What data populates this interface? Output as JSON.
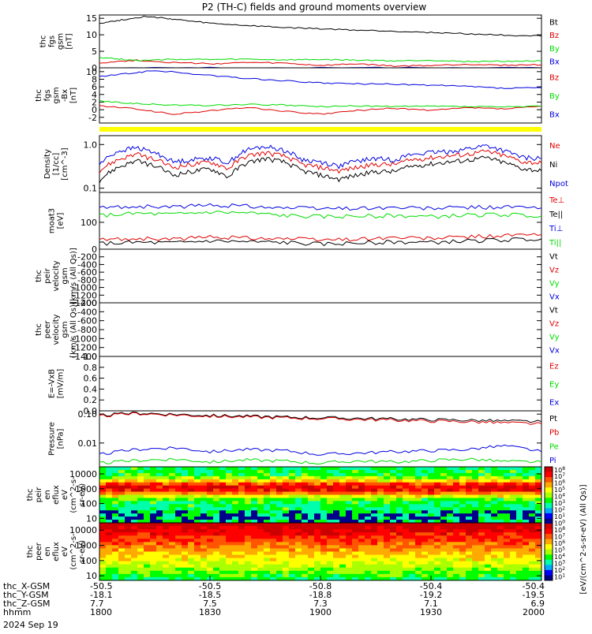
{
  "title": "P2 (TH-C) fields and ground moments overview",
  "date_label": "2024 Sep 19",
  "orbit_rows": [
    {
      "label": "thc_X-GSM",
      "values": [
        "-50.5",
        "-50.5",
        "-50.8",
        "-50.4",
        "-50.4"
      ]
    },
    {
      "label": "thc_Y-GSM",
      "values": [
        "-18.1",
        "-18.5",
        "-18.8",
        "-19.2",
        "-19.5"
      ]
    },
    {
      "label": "thc_Z-GSM",
      "values": [
        "7.7",
        "7.5",
        "7.3",
        "7.1",
        "6.9"
      ]
    },
    {
      "label": "hhmm",
      "values": [
        "1800",
        "1830",
        "1900",
        "1930",
        "2000"
      ]
    }
  ],
  "colors": {
    "black": "#000000",
    "red": "#e00000",
    "green": "#00dd00",
    "blue": "#0000e0",
    "yellow": "#ffff00"
  },
  "chart_data": [
    {
      "id": "fgs_gsm",
      "type": "line",
      "ylabel": [
        "thc",
        "fgs",
        "gsm",
        "[nT]"
      ],
      "ylim": [
        0,
        16
      ],
      "yticks": [
        0,
        5,
        10,
        15
      ],
      "series": [
        {
          "name": "Bt",
          "color": "black",
          "x": [
            1800,
            1806,
            1812,
            1818,
            1824,
            1830,
            1840,
            1850,
            1900,
            1910,
            1920,
            1930,
            1940,
            1950,
            2000
          ],
          "y": [
            13.5,
            14.5,
            15.5,
            15,
            14.2,
            13.5,
            12.8,
            12.2,
            11.8,
            11.4,
            11.1,
            10.7,
            10.3,
            9.9,
            9.6
          ]
        },
        {
          "name": "Bz",
          "color": "red",
          "x": [
            1800,
            1810,
            1820,
            1830,
            1840,
            1850,
            1900,
            1910,
            1920,
            1930,
            1940,
            1950,
            2000
          ],
          "y": [
            1.5,
            2.3,
            1.6,
            1.2,
            1.6,
            1.4,
            0.7,
            1.2,
            0.5,
            0.7,
            1.1,
            0.8,
            0.9
          ]
        },
        {
          "name": "By",
          "color": "green",
          "x": [
            1800,
            1806,
            1812,
            1820,
            1830,
            1840,
            1850,
            1900,
            1910,
            1920,
            1930,
            1940,
            1950,
            2000
          ],
          "y": [
            3.2,
            2.6,
            2.2,
            2.6,
            2.5,
            2.6,
            2.4,
            2.5,
            2.3,
            2.1,
            2.3,
            1.9,
            2.0,
            2.1
          ]
        },
        {
          "name": "Bx",
          "color": "blue",
          "x": [
            1800,
            1830,
            1900,
            1930,
            2000
          ],
          "y": [
            0,
            0,
            0,
            0,
            0
          ]
        }
      ]
    },
    {
      "id": "fgs_gsm_no_bx",
      "type": "line",
      "ylabel": [
        "thc",
        "fgs",
        "gsm",
        "-Bx",
        "[nT]"
      ],
      "ylim": [
        -3.5,
        11
      ],
      "yticks": [
        -2,
        0,
        2,
        4,
        6,
        8,
        10
      ],
      "series": [
        {
          "name": "Bz",
          "color": "red",
          "x": [
            1800,
            1810,
            1820,
            1830,
            1840,
            1850,
            1900,
            1910,
            1920,
            1930,
            1940,
            1950,
            2000
          ],
          "y": [
            1.0,
            0.2,
            -1.2,
            -0.3,
            0.6,
            -0.4,
            -1.2,
            -0.2,
            0.4,
            -0.2,
            0.5,
            0.2,
            0.9
          ]
        },
        {
          "name": "By",
          "color": "green",
          "x": [
            1800,
            1806,
            1812,
            1820,
            1830,
            1840,
            1850,
            1900,
            1910,
            1920,
            1930,
            1940,
            1950,
            2000
          ],
          "y": [
            2.3,
            1.8,
            1.5,
            1.2,
            1.1,
            1.4,
            1.2,
            0.8,
            1.0,
            0.8,
            0.9,
            0.8,
            0.7,
            0.9
          ]
        },
        {
          "name": "Bx",
          "color": "blue",
          "x": [
            1800,
            1808,
            1815,
            1830,
            1840,
            1850,
            1900,
            1910,
            1920,
            1930,
            1940,
            1950,
            2000
          ],
          "y": [
            8.7,
            9.5,
            10.3,
            9.0,
            8.2,
            7.6,
            7.0,
            6.8,
            6.7,
            6.4,
            6.1,
            5.6,
            5.8
          ]
        }
      ]
    },
    {
      "id": "density",
      "type": "line",
      "log": true,
      "ylabel": [
        "Density",
        "[1/cc]",
        "[cm^-3]"
      ],
      "ylim": [
        0.08,
        1.6
      ],
      "yticks": [
        0.1,
        1.0
      ],
      "yticklabels": [
        "0.1",
        "1.0"
      ],
      "series": [
        {
          "name": "Ne",
          "color": "red",
          "x": [
            1800,
            1805,
            1810,
            1815,
            1820,
            1825,
            1830,
            1835,
            1840,
            1845,
            1850,
            1855,
            1900,
            1905,
            1910,
            1915,
            1920,
            1925,
            1930,
            1935,
            1940,
            1945,
            1950,
            1955,
            2000
          ],
          "y": [
            0.25,
            0.45,
            0.6,
            0.45,
            0.3,
            0.35,
            0.4,
            0.28,
            0.55,
            0.65,
            0.55,
            0.35,
            0.3,
            0.25,
            0.3,
            0.35,
            0.35,
            0.45,
            0.5,
            0.55,
            0.6,
            0.7,
            0.55,
            0.4,
            0.38
          ]
        },
        {
          "name": "Ni",
          "color": "black",
          "x": [
            1800,
            1805,
            1810,
            1815,
            1820,
            1825,
            1830,
            1835,
            1840,
            1845,
            1850,
            1855,
            1900,
            1905,
            1910,
            1915,
            1920,
            1925,
            1930,
            1935,
            1940,
            1945,
            1950,
            1955,
            2000
          ],
          "y": [
            0.15,
            0.3,
            0.42,
            0.32,
            0.2,
            0.24,
            0.28,
            0.18,
            0.38,
            0.48,
            0.4,
            0.25,
            0.2,
            0.16,
            0.2,
            0.24,
            0.24,
            0.32,
            0.36,
            0.4,
            0.44,
            0.5,
            0.38,
            0.28,
            0.25
          ]
        },
        {
          "name": "Npot",
          "color": "blue",
          "x": [
            1800,
            1805,
            1810,
            1815,
            1820,
            1825,
            1830,
            1835,
            1840,
            1845,
            1850,
            1855,
            1900,
            1905,
            1910,
            1915,
            1920,
            1925,
            1930,
            1935,
            1940,
            1945,
            1950,
            1955,
            2000
          ],
          "y": [
            0.35,
            0.7,
            0.85,
            0.65,
            0.4,
            0.45,
            0.5,
            0.38,
            0.75,
            0.9,
            0.75,
            0.45,
            0.4,
            0.32,
            0.42,
            0.48,
            0.45,
            0.6,
            0.65,
            0.7,
            0.8,
            0.95,
            0.7,
            0.5,
            0.48
          ]
        }
      ]
    },
    {
      "id": "temperature",
      "type": "line",
      "log": true,
      "ylabel": [
        "moat3",
        "[eV]"
      ],
      "ylim": [
        20,
        600
      ],
      "yticks": [
        100
      ],
      "yticklabels": [
        "100"
      ],
      "series": [
        {
          "name": "Te⊥",
          "color": "red",
          "x": [
            1800,
            1810,
            1820,
            1830,
            1840,
            1850,
            1900,
            1910,
            1920,
            1930,
            1940,
            1950,
            2000
          ],
          "y": [
            35,
            38,
            36,
            42,
            40,
            38,
            35,
            37,
            40,
            38,
            42,
            45,
            48
          ]
        },
        {
          "name": "Te||",
          "color": "black",
          "x": [
            1800,
            1810,
            1820,
            1830,
            1840,
            1850,
            1900,
            1910,
            1920,
            1930,
            1940,
            1950,
            2000
          ],
          "y": [
            28,
            30,
            29,
            33,
            31,
            30,
            27,
            29,
            31,
            30,
            33,
            35,
            37
          ]
        },
        {
          "name": "Ti⊥",
          "color": "blue",
          "x": [
            1800,
            1810,
            1820,
            1830,
            1840,
            1850,
            1900,
            1910,
            1920,
            1930,
            1940,
            1950,
            2000
          ],
          "y": [
            240,
            260,
            250,
            280,
            270,
            240,
            230,
            235,
            240,
            230,
            245,
            250,
            235
          ]
        },
        {
          "name": "Ti||",
          "color": "green",
          "x": [
            1800,
            1810,
            1820,
            1830,
            1840,
            1850,
            1900,
            1910,
            1920,
            1930,
            1940,
            1950,
            2000
          ],
          "y": [
            150,
            170,
            160,
            185,
            175,
            150,
            140,
            145,
            150,
            140,
            155,
            160,
            145
          ]
        }
      ]
    },
    {
      "id": "peir_velocity",
      "type": "line",
      "ylabel": [
        "thc",
        "peir",
        "velocity",
        "gsm",
        "[km/s (All Qs)]"
      ],
      "ylim": [
        -1400,
        0
      ],
      "yticks": [
        0,
        -200,
        -400,
        -600,
        -800,
        -1000,
        -1200,
        -1400
      ],
      "series": [
        {
          "name": "Vt",
          "color": "black"
        },
        {
          "name": "Vz",
          "color": "red"
        },
        {
          "name": "Vy",
          "color": "green"
        },
        {
          "name": "Vx",
          "color": "blue"
        }
      ]
    },
    {
      "id": "peer_velocity",
      "type": "line",
      "ylabel": [
        "thc",
        "peer",
        "velocity",
        "gsm",
        "[km/s (All Qs)]"
      ],
      "ylim": [
        -1400,
        -200
      ],
      "yticks": [
        -200,
        -400,
        -600,
        -800,
        -1000,
        -1200,
        -1400
      ],
      "series": [
        {
          "name": "Vt",
          "color": "black"
        },
        {
          "name": "Vz",
          "color": "red"
        },
        {
          "name": "Vy",
          "color": "green"
        },
        {
          "name": "Vx",
          "color": "blue"
        }
      ]
    },
    {
      "id": "efield",
      "type": "line",
      "ylabel": [
        "E=-VxB",
        "[mV/m]"
      ],
      "ylim": [
        0,
        1.0
      ],
      "yticks": [
        0.0,
        0.2,
        0.4,
        0.6,
        0.8,
        1.0
      ],
      "yticklabels": [
        "0.0",
        "0.2",
        "0.4",
        "0.6",
        "0.8",
        "1.0"
      ],
      "series": [
        {
          "name": "Ez",
          "color": "red"
        },
        {
          "name": "Ey",
          "color": "green"
        },
        {
          "name": "Ex",
          "color": "blue"
        }
      ]
    },
    {
      "id": "pressure",
      "type": "line",
      "log": true,
      "ylabel": [
        "Pressure",
        "[nPa]"
      ],
      "ylim": [
        0.0015,
        0.13
      ],
      "yticks": [
        0.01,
        0.1
      ],
      "yticklabels": [
        "0.01",
        "0.10"
      ],
      "series": [
        {
          "name": "Pt",
          "color": "black",
          "x": [
            1800,
            1810,
            1820,
            1830,
            1840,
            1850,
            1900,
            1910,
            1920,
            1930,
            1940,
            1950,
            2000
          ],
          "y": [
            0.09,
            0.11,
            0.1,
            0.09,
            0.085,
            0.08,
            0.075,
            0.072,
            0.068,
            0.065,
            0.062,
            0.058,
            0.055
          ]
        },
        {
          "name": "Pb",
          "color": "red",
          "x": [
            1800,
            1810,
            1820,
            1830,
            1840,
            1850,
            1900,
            1910,
            1920,
            1930,
            1940,
            1950,
            2000
          ],
          "y": [
            0.085,
            0.105,
            0.095,
            0.085,
            0.08,
            0.075,
            0.07,
            0.066,
            0.062,
            0.058,
            0.055,
            0.05,
            0.046
          ]
        },
        {
          "name": "Pe",
          "color": "green",
          "x": [
            1800,
            1810,
            1820,
            1830,
            1840,
            1850,
            1900,
            1910,
            1920,
            1930,
            1940,
            1950,
            2000
          ],
          "y": [
            0.002,
            0.0025,
            0.0028,
            0.0022,
            0.0026,
            0.0024,
            0.002,
            0.0024,
            0.0022,
            0.0025,
            0.0028,
            0.0023,
            0.0022
          ]
        },
        {
          "name": "Pi",
          "color": "blue",
          "x": [
            1800,
            1810,
            1820,
            1830,
            1840,
            1850,
            1900,
            1910,
            1920,
            1930,
            1940,
            1950,
            2000
          ],
          "y": [
            0.004,
            0.006,
            0.007,
            0.005,
            0.006,
            0.0055,
            0.004,
            0.0045,
            0.005,
            0.0055,
            0.006,
            0.008,
            0.005
          ]
        }
      ]
    },
    {
      "id": "peir_spectrogram",
      "type": "heatmap",
      "log": true,
      "ylabel": [
        "thc",
        "peir",
        "en",
        "eflux",
        "eV",
        "(cm^2-s-",
        "sr-eV)"
      ],
      "ylim": [
        5,
        30000
      ],
      "yticks": [
        10,
        100,
        1000,
        10000
      ],
      "yticklabels": [
        "10",
        "100",
        "1000",
        "10000"
      ]
    },
    {
      "id": "peer_spectrogram",
      "type": "heatmap",
      "log": true,
      "ylabel": [
        "thc",
        "peer",
        "en",
        "eflux",
        "eV",
        "(cm^2-s-",
        "sr-eV)"
      ],
      "ylim": [
        5,
        30000
      ],
      "yticks": [
        10,
        100,
        1000,
        10000
      ],
      "yticklabels": [
        "10",
        "100",
        "1000",
        "10000"
      ]
    }
  ],
  "colorbar": {
    "label": "[eV/(cm^2-s-sr-eV) (All Qs)]",
    "ticks": [
      "10^8",
      "10^7",
      "10^6",
      "10^5",
      "10^4",
      "10^3",
      "10^2",
      "10^1",
      "10^0",
      "10^8",
      "10^7",
      "10^6",
      "10^5",
      "10^4",
      "10^3",
      "10^2",
      "10^1"
    ]
  },
  "x_axis": {
    "range": [
      1800,
      2000
    ],
    "ticks": [
      1800,
      1830,
      1900,
      1930,
      2000
    ]
  }
}
